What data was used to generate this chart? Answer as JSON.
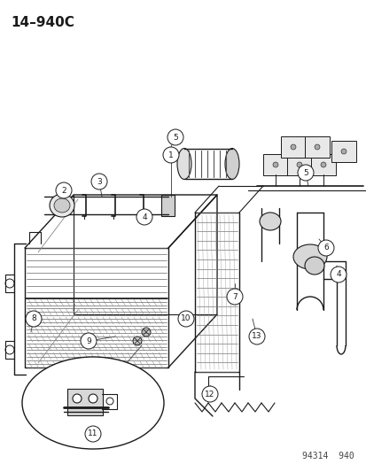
{
  "title": "14–940C",
  "watermark": "94314  940",
  "bg_color": "#ffffff",
  "line_color": "#1a1a1a",
  "title_fontsize": 11,
  "watermark_fontsize": 7
}
